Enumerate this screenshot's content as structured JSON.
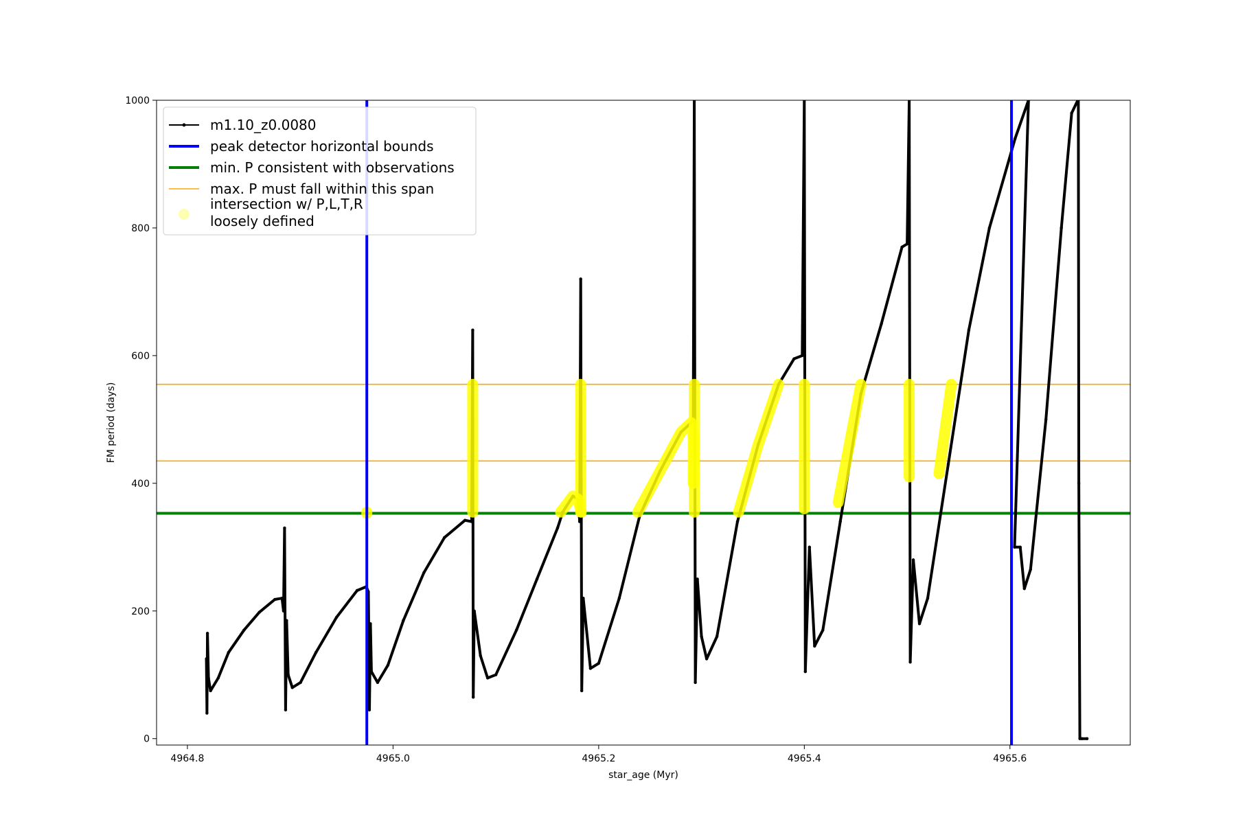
{
  "chart_data": {
    "type": "line",
    "xlabel": "star_age (Myr)",
    "ylabel": "FM period (days)",
    "xlim": [
      4964.77,
      4965.717
    ],
    "ylim": [
      -10,
      1000
    ],
    "x_ticks": [
      4964.8,
      4965.0,
      4965.2,
      4965.4,
      4965.6
    ],
    "x_tick_labels": [
      "4964.8",
      "4965.0",
      "4965.2",
      "4965.4",
      "4965.6"
    ],
    "y_ticks": [
      0,
      200,
      400,
      600,
      800,
      1000
    ],
    "y_tick_labels": [
      "0",
      "200",
      "400",
      "600",
      "800",
      "1000"
    ],
    "grid": false,
    "legend_position": "upper-left",
    "series": [
      {
        "name": "m1.10_z0.0080",
        "color": "#000000",
        "marker": "dot",
        "points": [
          [
            4964.8185,
            125
          ],
          [
            4964.819,
            40
          ],
          [
            4964.8195,
            165
          ],
          [
            4964.8205,
            95
          ],
          [
            4964.8225,
            75
          ],
          [
            4964.83,
            95
          ],
          [
            4964.84,
            135
          ],
          [
            4964.855,
            170
          ],
          [
            4964.87,
            198
          ],
          [
            4964.885,
            218
          ],
          [
            4964.892,
            220
          ],
          [
            4964.8935,
            200
          ],
          [
            4964.8945,
            330
          ],
          [
            4964.8955,
            45
          ],
          [
            4964.8965,
            185
          ],
          [
            4964.898,
            100
          ],
          [
            4964.902,
            80
          ],
          [
            4964.91,
            88
          ],
          [
            4964.925,
            135
          ],
          [
            4964.945,
            190
          ],
          [
            4964.965,
            232
          ],
          [
            4964.974,
            238
          ],
          [
            4964.976,
            230
          ],
          [
            4964.977,
            45
          ],
          [
            4964.978,
            180
          ],
          [
            4964.979,
            105
          ],
          [
            4964.985,
            88
          ],
          [
            4964.995,
            115
          ],
          [
            4965.01,
            185
          ],
          [
            4965.03,
            260
          ],
          [
            4965.05,
            315
          ],
          [
            4965.07,
            342
          ],
          [
            4965.0765,
            340
          ],
          [
            4965.0775,
            640
          ],
          [
            4965.078,
            65
          ],
          [
            4965.079,
            200
          ],
          [
            4965.085,
            130
          ],
          [
            4965.092,
            95
          ],
          [
            4965.1,
            100
          ],
          [
            4965.12,
            170
          ],
          [
            4965.14,
            250
          ],
          [
            4965.16,
            330
          ],
          [
            4965.165,
            355
          ],
          [
            4965.175,
            380
          ],
          [
            4965.18,
            375
          ],
          [
            4965.1815,
            340
          ],
          [
            4965.1825,
            720
          ],
          [
            4965.1835,
            75
          ],
          [
            4965.185,
            220
          ],
          [
            4965.192,
            110
          ],
          [
            4965.2,
            118
          ],
          [
            4965.22,
            220
          ],
          [
            4965.24,
            350
          ],
          [
            4965.26,
            420
          ],
          [
            4965.28,
            480
          ],
          [
            4965.29,
            495
          ],
          [
            4965.292,
            500
          ],
          [
            4965.293,
            1000
          ],
          [
            4965.294,
            88
          ],
          [
            4965.296,
            250
          ],
          [
            4965.3,
            160
          ],
          [
            4965.305,
            125
          ],
          [
            4965.315,
            160
          ],
          [
            4965.335,
            340
          ],
          [
            4965.355,
            460
          ],
          [
            4965.375,
            555
          ],
          [
            4965.39,
            595
          ],
          [
            4965.398,
            600
          ],
          [
            4965.4,
            1000
          ],
          [
            4965.401,
            105
          ],
          [
            4965.405,
            300
          ],
          [
            4965.41,
            145
          ],
          [
            4965.418,
            170
          ],
          [
            4965.435,
            340
          ],
          [
            4965.455,
            540
          ],
          [
            4965.475,
            650
          ],
          [
            4965.495,
            770
          ],
          [
            4965.5,
            775
          ],
          [
            4965.502,
            1000
          ],
          [
            4965.503,
            120
          ],
          [
            4965.506,
            280
          ],
          [
            4965.512,
            180
          ],
          [
            4965.52,
            220
          ],
          [
            4965.54,
            430
          ],
          [
            4965.56,
            640
          ],
          [
            4965.58,
            800
          ],
          [
            4965.605,
            940
          ],
          [
            4965.618,
            1000
          ],
          [
            4965.6045,
            300
          ],
          [
            4965.61,
            300
          ],
          [
            4965.614,
            235
          ],
          [
            4965.62,
            265
          ],
          [
            4965.635,
            500
          ],
          [
            4965.65,
            800
          ],
          [
            4965.66,
            980
          ],
          [
            4965.666,
            1000
          ],
          [
            4965.6665,
            1000
          ],
          [
            4965.667,
            400
          ],
          [
            4965.668,
            0
          ],
          [
            4965.67,
            0
          ],
          [
            4965.675,
            0
          ]
        ]
      },
      {
        "name": "peak detector horizontal bounds",
        "color": "#0000ff",
        "type": "vline",
        "x": [
          4964.9745,
          4965.6015
        ]
      },
      {
        "name": "min. P consistent with observations",
        "color": "#008000",
        "type": "hline",
        "y": [
          353
        ]
      },
      {
        "name": "max. P must fall within this span",
        "color": "#ffa500",
        "type": "hline",
        "y": [
          435,
          555
        ]
      },
      {
        "name": "intersection w/ P,L,T,R\nloosely defined",
        "color": "#ffff00",
        "type": "scatter",
        "segments": [
          [
            [
              4964.9745,
              353
            ],
            [
              4964.9745,
              355
            ]
          ],
          [
            [
              4965.0775,
              355
            ],
            [
              4965.0775,
              555
            ]
          ],
          [
            [
              4965.163,
              355
            ],
            [
              4965.175,
              380
            ],
            [
              4965.18,
              375
            ],
            [
              4965.183,
              355
            ]
          ],
          [
            [
              4965.1825,
              355
            ],
            [
              4965.1825,
              555
            ]
          ],
          [
            [
              4965.238,
              355
            ],
            [
              4965.26,
              420
            ],
            [
              4965.28,
              480
            ],
            [
              4965.29,
              495
            ],
            [
              4965.292,
              470
            ],
            [
              4965.292,
              400
            ]
          ],
          [
            [
              4965.293,
              355
            ],
            [
              4965.293,
              555
            ]
          ],
          [
            [
              4965.336,
              355
            ],
            [
              4965.355,
              460
            ],
            [
              4965.375,
              555
            ]
          ],
          [
            [
              4965.4,
              360
            ],
            [
              4965.4,
              555
            ]
          ],
          [
            [
              4965.433,
              370
            ],
            [
              4965.455,
              555
            ]
          ],
          [
            [
              4965.502,
              410
            ],
            [
              4965.502,
              555
            ]
          ],
          [
            [
              4965.531,
              415
            ],
            [
              4965.543,
              555
            ]
          ]
        ]
      }
    ]
  }
}
